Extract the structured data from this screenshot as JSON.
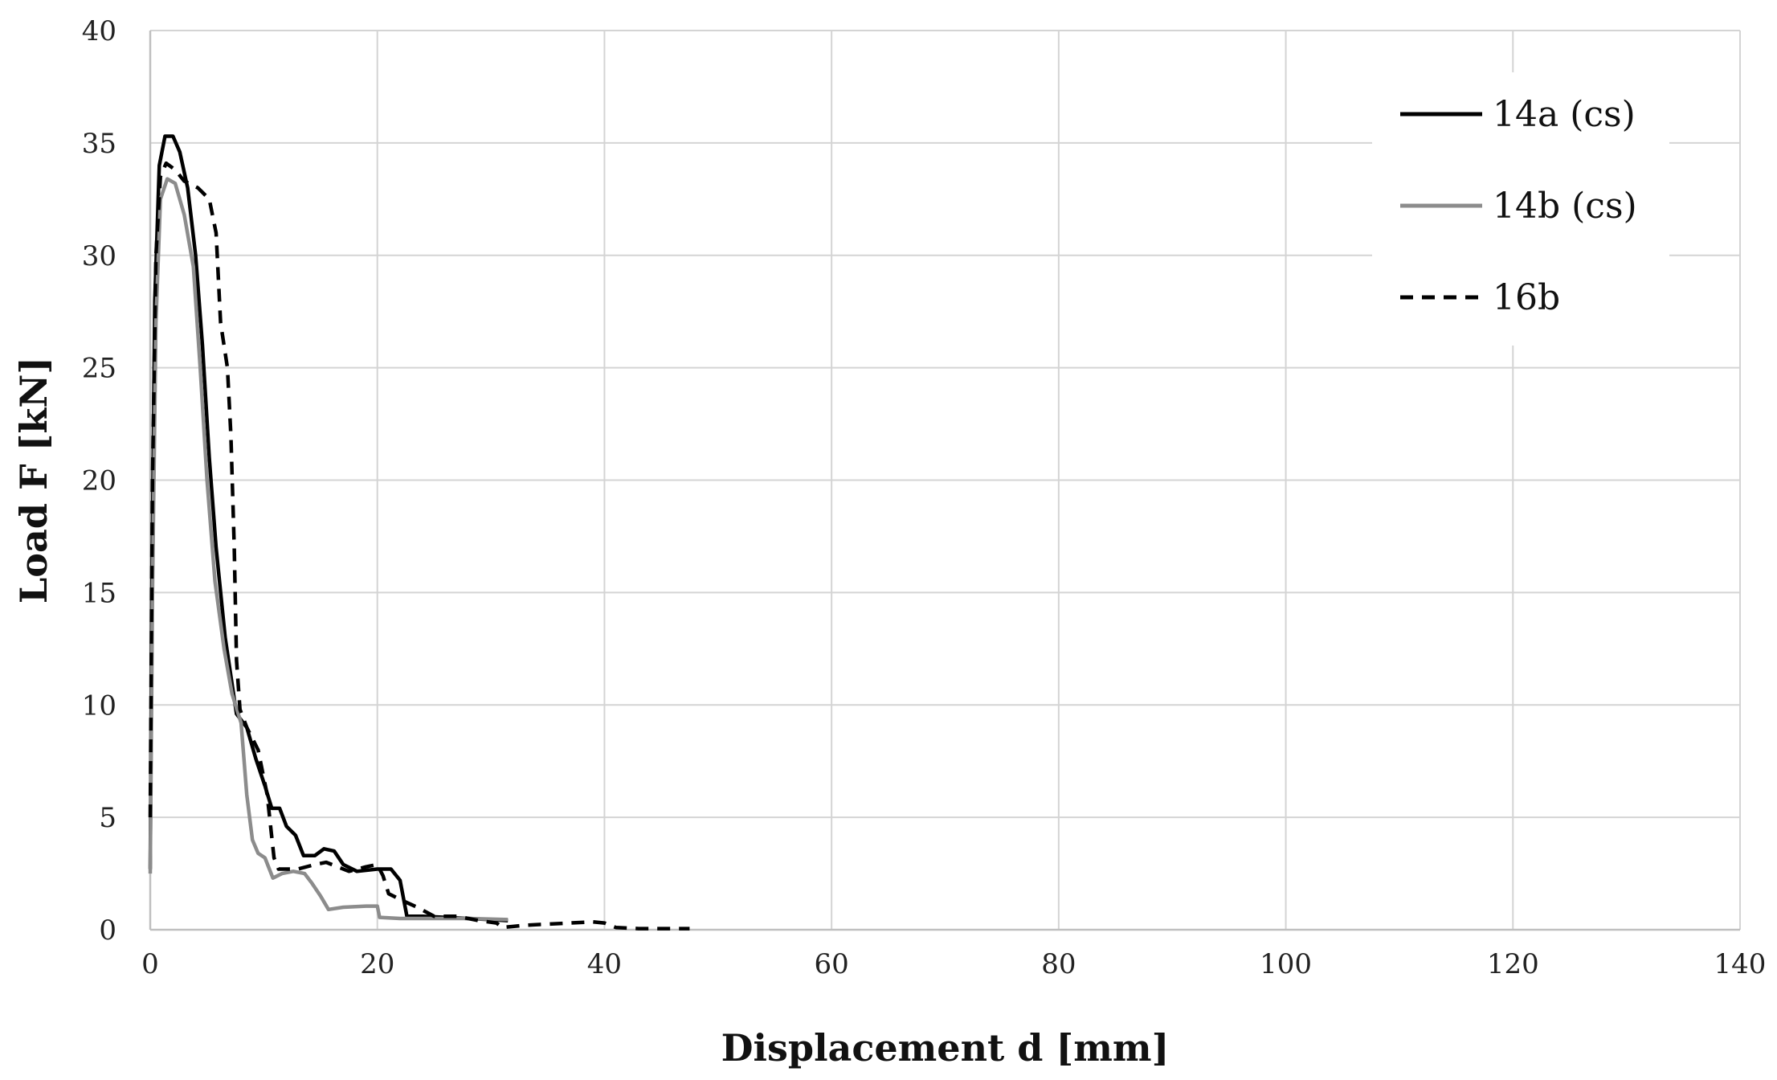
{
  "chart_data": {
    "type": "line",
    "title": "",
    "xlabel": "Displacement d [mm]",
    "ylabel": "Load F [kN]",
    "xlim": [
      0,
      140
    ],
    "ylim": [
      0,
      40
    ],
    "xticks": [
      0,
      20,
      40,
      60,
      80,
      100,
      120,
      140
    ],
    "yticks": [
      0,
      5,
      10,
      15,
      20,
      25,
      30,
      35,
      40
    ],
    "grid": true,
    "legend_position": "top-right",
    "series": [
      {
        "name": "14a (cs)",
        "color": "#000000",
        "dash": "solid",
        "points": [
          [
            0,
            2.7
          ],
          [
            0.15,
            15
          ],
          [
            0.4,
            28
          ],
          [
            0.8,
            34
          ],
          [
            1.3,
            35.3
          ],
          [
            2,
            35.3
          ],
          [
            2.6,
            34.6
          ],
          [
            3.3,
            33
          ],
          [
            4,
            30
          ],
          [
            4.6,
            26
          ],
          [
            5.2,
            21
          ],
          [
            5.8,
            17
          ],
          [
            6.6,
            13
          ],
          [
            7.6,
            9.6
          ],
          [
            8.5,
            9.0
          ],
          [
            9.3,
            7.6
          ],
          [
            10.1,
            6.4
          ],
          [
            10.7,
            5.4
          ],
          [
            11.4,
            5.4
          ],
          [
            12,
            4.6
          ],
          [
            12.8,
            4.2
          ],
          [
            13.5,
            3.3
          ],
          [
            14.5,
            3.3
          ],
          [
            15.3,
            3.6
          ],
          [
            16.2,
            3.5
          ],
          [
            17,
            2.9
          ],
          [
            18.2,
            2.6
          ],
          [
            20,
            2.7
          ],
          [
            21.2,
            2.7
          ],
          [
            22,
            2.2
          ],
          [
            22.6,
            0.6
          ],
          [
            24,
            0.6
          ],
          [
            26,
            0.55
          ],
          [
            28,
            0.5
          ],
          [
            30,
            0.45
          ],
          [
            31.5,
            0.4
          ]
        ]
      },
      {
        "name": "14b (cs)",
        "color": "#8c8c8c",
        "dash": "solid",
        "points": [
          [
            0,
            2.5
          ],
          [
            0.2,
            15
          ],
          [
            0.5,
            27
          ],
          [
            0.9,
            32.5
          ],
          [
            1.5,
            33.4
          ],
          [
            2.2,
            33.2
          ],
          [
            3,
            31.8
          ],
          [
            3.8,
            29.5
          ],
          [
            4.4,
            25
          ],
          [
            5,
            20
          ],
          [
            5.7,
            15.5
          ],
          [
            6.5,
            12.5
          ],
          [
            7.2,
            10.5
          ],
          [
            8,
            9.2
          ],
          [
            8.5,
            6
          ],
          [
            9,
            4
          ],
          [
            9.5,
            3.4
          ],
          [
            10.1,
            3.2
          ],
          [
            10.8,
            2.3
          ],
          [
            11.6,
            2.5
          ],
          [
            12.6,
            2.6
          ],
          [
            13.6,
            2.5
          ],
          [
            14.2,
            2.1
          ],
          [
            15,
            1.5
          ],
          [
            15.7,
            0.9
          ],
          [
            17,
            1.0
          ],
          [
            19,
            1.05
          ],
          [
            20,
            1.05
          ],
          [
            20.2,
            0.55
          ],
          [
            22,
            0.5
          ],
          [
            25,
            0.5
          ],
          [
            28,
            0.5
          ],
          [
            31.5,
            0.45
          ]
        ]
      },
      {
        "name": "16b",
        "color": "#000000",
        "dash": "dashed",
        "points": [
          [
            0,
            5
          ],
          [
            0.2,
            20
          ],
          [
            0.5,
            30
          ],
          [
            0.9,
            33.5
          ],
          [
            1.4,
            34.1
          ],
          [
            2.2,
            33.8
          ],
          [
            3,
            33.3
          ],
          [
            4.2,
            33
          ],
          [
            5.2,
            32.5
          ],
          [
            5.8,
            31
          ],
          [
            6.2,
            27
          ],
          [
            6.8,
            25
          ],
          [
            7.1,
            22
          ],
          [
            7.4,
            17
          ],
          [
            7.6,
            12
          ],
          [
            7.9,
            9.8
          ],
          [
            8.5,
            9.0
          ],
          [
            9.5,
            8.0
          ],
          [
            10.3,
            6.0
          ],
          [
            10.9,
            3.2
          ],
          [
            11.3,
            2.7
          ],
          [
            13,
            2.7
          ],
          [
            14.5,
            2.9
          ],
          [
            15.5,
            3.0
          ],
          [
            16.5,
            2.8
          ],
          [
            17.5,
            2.6
          ],
          [
            19,
            2.8
          ],
          [
            20,
            2.9
          ],
          [
            20.5,
            2.4
          ],
          [
            21,
            1.6
          ],
          [
            22.2,
            1.3
          ],
          [
            23.5,
            1.0
          ],
          [
            25,
            0.6
          ],
          [
            27,
            0.6
          ],
          [
            29,
            0.4
          ],
          [
            30.5,
            0.3
          ],
          [
            31,
            0.1
          ],
          [
            33,
            0.2
          ],
          [
            35,
            0.25
          ],
          [
            37,
            0.3
          ],
          [
            39,
            0.35
          ],
          [
            40,
            0.3
          ],
          [
            41,
            0.1
          ],
          [
            43,
            0.05
          ],
          [
            45,
            0.05
          ],
          [
            47.5,
            0.05
          ]
        ]
      }
    ]
  }
}
